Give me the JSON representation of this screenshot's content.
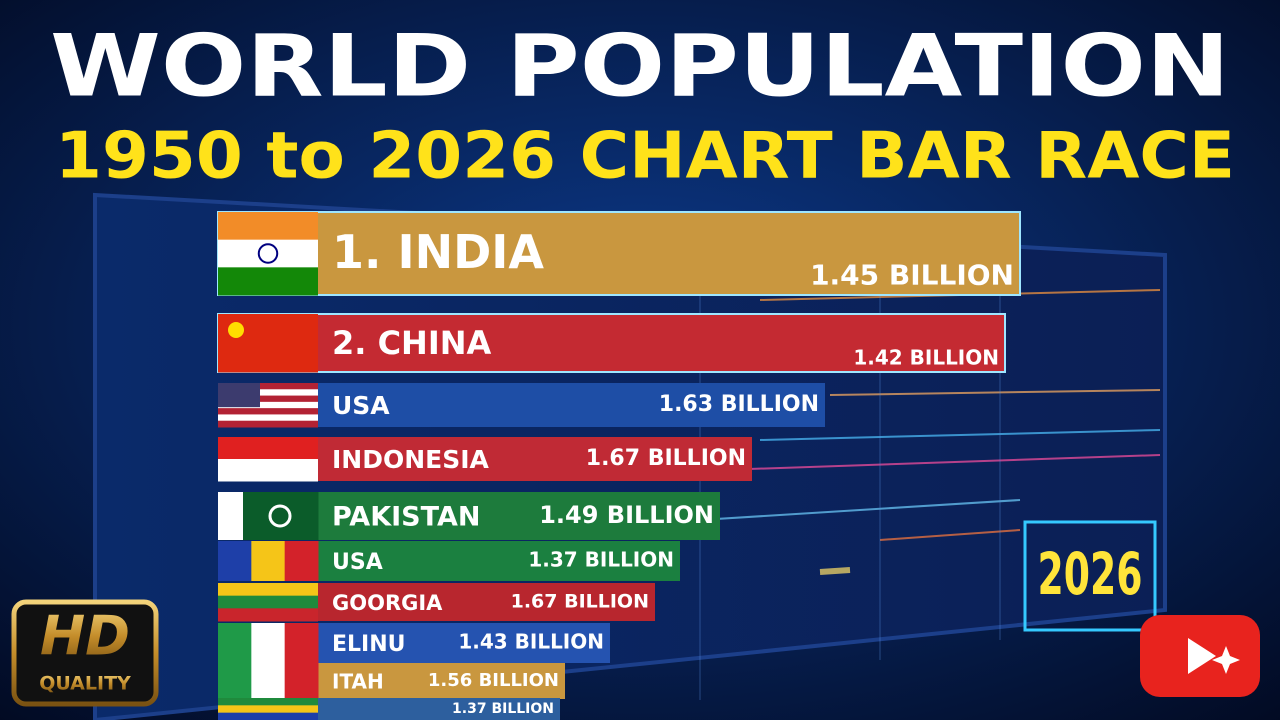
{
  "header": {
    "title": "WORLD POPULATION",
    "subtitle": "1950 to 2026 CHART BAR RACE"
  },
  "rows": [
    {
      "label": "1. INDIA",
      "value": "1.45 BILLION"
    },
    {
      "label": "2. CHINA",
      "value": "1.42 BILLION"
    },
    {
      "label": "USA",
      "value": "1.63 BILLION"
    },
    {
      "label": "INDONESIA",
      "value": "1.67 BILLION"
    },
    {
      "label": "PAKISTAN",
      "value": "1.49 BILLION"
    },
    {
      "label": "USA",
      "value": "1.37 BILLION"
    },
    {
      "label": "GOORGIA",
      "value": "1.67 BILLION"
    },
    {
      "label": "ELINU",
      "value": "1.43 BILLION"
    },
    {
      "label": "ITAH",
      "value": "1.56 BILLION"
    },
    {
      "value": "1.37 BILLION"
    }
  ],
  "year": "2026",
  "badge": {
    "top": "HD",
    "bottom": "QUALITY"
  }
}
